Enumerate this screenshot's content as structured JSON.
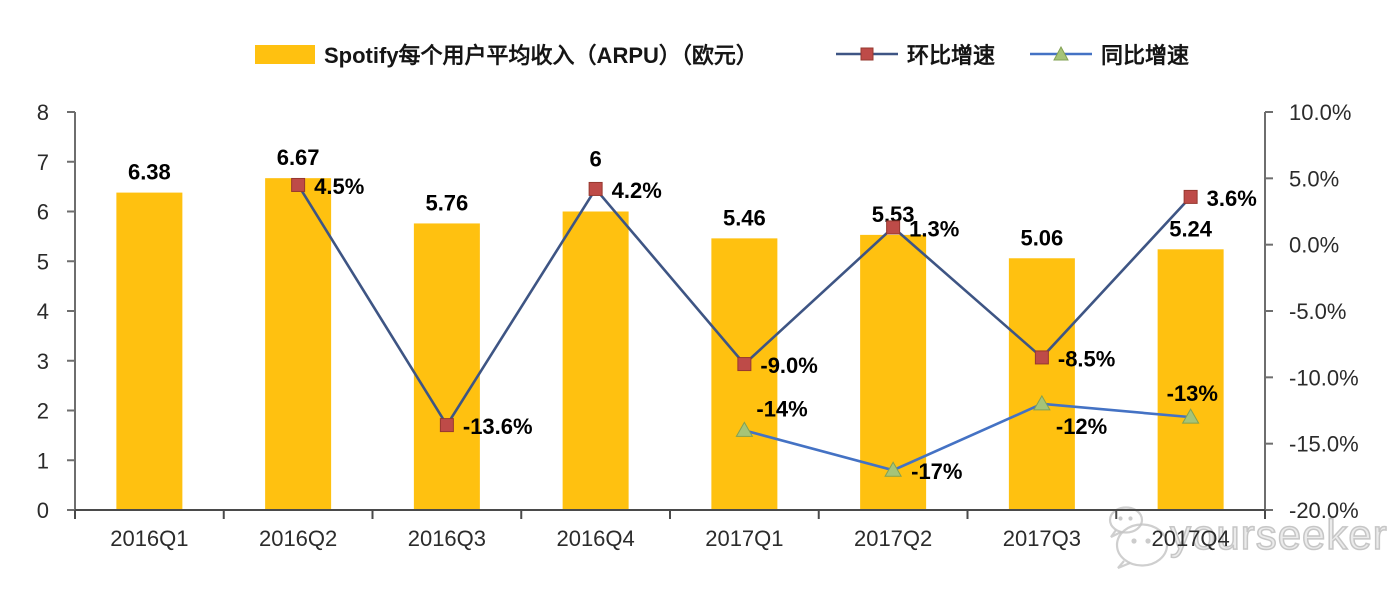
{
  "chart_data": {
    "type": "bar",
    "subtype": "combo-bar-line-dual-axis",
    "title": "",
    "categories": [
      "2016Q1",
      "2016Q2",
      "2016Q3",
      "2016Q4",
      "2017Q1",
      "2017Q2",
      "2017Q3",
      "2017Q4"
    ],
    "series": [
      {
        "name": "Spotify每个用户平均收入（ARPU）（欧元）",
        "type": "bar",
        "axis": "left",
        "color": "#FFC110",
        "values": [
          6.38,
          6.67,
          5.76,
          6,
          5.46,
          5.53,
          5.06,
          5.24
        ],
        "labels": [
          "6.38",
          "6.67",
          "5.76",
          "6",
          "5.46",
          "5.53",
          "5.06",
          "5.24"
        ]
      },
      {
        "name": "环比增速",
        "type": "line",
        "axis": "right",
        "color": "#3E5584",
        "marker": "square",
        "marker_color": "#BE4B48",
        "marker_edge": "#96382F",
        "values": [
          null,
          4.5,
          -13.6,
          4.2,
          -9.0,
          1.3,
          -8.5,
          3.6
        ],
        "labels": [
          null,
          "4.5%",
          "-13.6%",
          "4.2%",
          "-9.0%",
          "1.3%",
          "-8.5%",
          "3.6%"
        ]
      },
      {
        "name": "同比增速",
        "type": "line",
        "axis": "right",
        "color": "#4472C4",
        "marker": "triangle",
        "marker_color": "#A6C478",
        "marker_edge": "#82A153",
        "values": [
          null,
          null,
          null,
          null,
          -14,
          -17,
          -12,
          -13
        ],
        "labels": [
          null,
          null,
          null,
          null,
          "-14%",
          "-17%",
          "-12%",
          "-13%"
        ]
      }
    ],
    "left_axis": {
      "min": 0,
      "max": 8,
      "tick_values": [
        0,
        1,
        2,
        3,
        4,
        5,
        6,
        7,
        8
      ],
      "tick_labels": [
        "0",
        "1",
        "2",
        "3",
        "4",
        "5",
        "6",
        "7",
        "8"
      ]
    },
    "right_axis": {
      "min": -20,
      "max": 10,
      "tick_values": [
        10,
        5,
        0,
        -5,
        -10,
        -15,
        -20
      ],
      "tick_labels": [
        "10.0%",
        "5.0%",
        "0.0%",
        "-5.0%",
        "-10.0%",
        "-15.0%",
        "-20.0%"
      ]
    },
    "grid": false,
    "legend_position": "top",
    "axis_color": "#6e6e6e",
    "tick_label_color": "#2b2b2b",
    "data_label_color": "#000000"
  },
  "watermark": {
    "text": "yourseeker"
  }
}
